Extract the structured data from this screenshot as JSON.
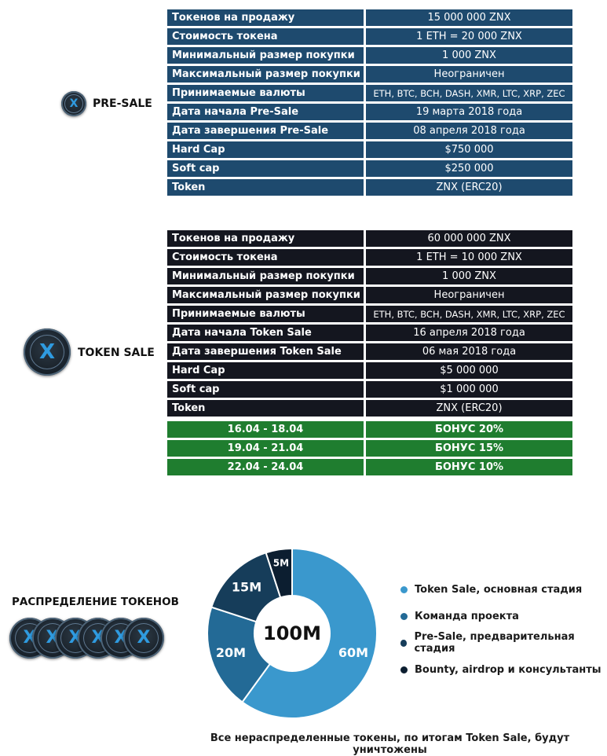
{
  "presale": {
    "label": "PRE-SALE",
    "rows": [
      {
        "k": "Токенов на продажу",
        "v": "15 000 000 ZNX"
      },
      {
        "k": "Стоимость токена",
        "v": "1 ETH = 20 000 ZNX"
      },
      {
        "k": "Минимальный размер покупки",
        "v": "1 000 ZNX"
      },
      {
        "k": "Максимальный размер покупки",
        "v": "Неограничен"
      },
      {
        "k": "Принимаемые валюты",
        "v": "ETH, BTC, BCH, DASH, XMR, LTC, XRP, ZEC"
      },
      {
        "k": "Дата начала Pre-Sale",
        "v": "19 марта 2018 года"
      },
      {
        "k": "Дата завершения Pre-Sale",
        "v": "08 апреля 2018 года"
      },
      {
        "k": "Hard Cap",
        "v": "$750 000"
      },
      {
        "k": "Soft cap",
        "v": "$250 000"
      },
      {
        "k": "Token",
        "v": "ZNX (ERC20)"
      }
    ]
  },
  "tokensale": {
    "label": "TOKEN SALE",
    "rows": [
      {
        "k": "Токенов на продажу",
        "v": "60 000 000 ZNX"
      },
      {
        "k": "Стоимость токена",
        "v": "1 ETH = 10 000 ZNX"
      },
      {
        "k": "Минимальный размер покупки",
        "v": "1 000 ZNX"
      },
      {
        "k": "Максимальный размер покупки",
        "v": "Неограничен"
      },
      {
        "k": "Принимаемые валюты",
        "v": "ETH, BTC, BCH, DASH, XMR, LTC, XRP, ZEC"
      },
      {
        "k": "Дата начала Token Sale",
        "v": "16 апреля 2018 года"
      },
      {
        "k": "Дата завершения Token Sale",
        "v": "06 мая 2018 года"
      },
      {
        "k": "Hard Cap",
        "v": "$5 000 000"
      },
      {
        "k": "Soft cap",
        "v": "$1 000 000"
      },
      {
        "k": "Token",
        "v": "ZNX (ERC20)"
      }
    ],
    "bonuses": [
      {
        "period": "16.04 - 18.04",
        "bonus": "БОНУС 20%"
      },
      {
        "period": "19.04 - 21.04",
        "bonus": "БОНУС 15%"
      },
      {
        "period": "22.04 - 24.04",
        "bonus": "БОНУС 10%"
      }
    ]
  },
  "distribution": {
    "label": "РАСПРЕДЕЛЕНИЕ ТОКЕНОВ",
    "total": "100M",
    "slices": [
      {
        "label": "60M",
        "value": 60,
        "color": "#3a98cd",
        "legend": "Token Sale, основная стадия"
      },
      {
        "label": "20M",
        "value": 20,
        "color": "#236a96",
        "legend": "Команда проекта"
      },
      {
        "label": "15M",
        "value": 15,
        "color": "#163d5a",
        "legend": "Pre-Sale, предварительная стадия"
      },
      {
        "label": "5M",
        "value": 5,
        "color": "#0c1e30",
        "legend": "Bounty, airdrop и консультанты"
      }
    ]
  },
  "logo_glyph": "X",
  "footer": "Все нераспределенные токены, по итогам Token Sale, будут уничтожены"
}
